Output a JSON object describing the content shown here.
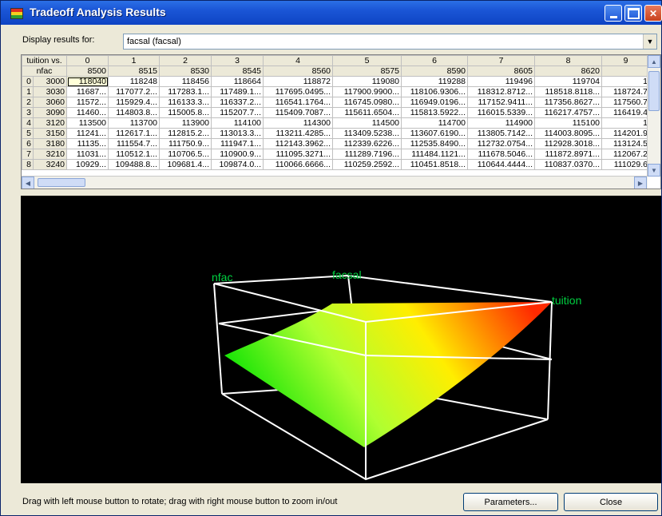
{
  "window": {
    "title": "Tradeoff Analysis Results"
  },
  "display": {
    "label": "Display results for:",
    "selected": "facsal (facsal)"
  },
  "grid": {
    "corner_top": "tuition vs.",
    "corner_bottom": "nfac",
    "col_indices": [
      "0",
      "1",
      "2",
      "3",
      "4",
      "5",
      "6",
      "7",
      "8",
      "9"
    ],
    "col_values": [
      "8500",
      "8515",
      "8530",
      "8545",
      "8560",
      "8575",
      "8590",
      "8605",
      "8620",
      ""
    ],
    "rows": [
      {
        "idx": "0",
        "val": "3000",
        "cells": [
          "118040",
          "118248",
          "118456",
          "118664",
          "118872",
          "119080",
          "119288",
          "119496",
          "119704",
          "1"
        ]
      },
      {
        "idx": "1",
        "val": "3030",
        "cells": [
          "11687...",
          "117077.2...",
          "117283.1...",
          "117489.1...",
          "117695.0495...",
          "117900.9900...",
          "118106.9306...",
          "118312.8712...",
          "118518.8118...",
          "118724.7"
        ]
      },
      {
        "idx": "2",
        "val": "3060",
        "cells": [
          "11572...",
          "115929.4...",
          "116133.3...",
          "116337.2...",
          "116541.1764...",
          "116745.0980...",
          "116949.0196...",
          "117152.9411...",
          "117356.8627...",
          "117560.7"
        ]
      },
      {
        "idx": "3",
        "val": "3090",
        "cells": [
          "11460...",
          "114803.8...",
          "115005.8...",
          "115207.7...",
          "115409.7087...",
          "115611.6504...",
          "115813.5922...",
          "116015.5339...",
          "116217.4757...",
          "116419.4"
        ]
      },
      {
        "idx": "4",
        "val": "3120",
        "cells": [
          "113500",
          "113700",
          "113900",
          "114100",
          "114300",
          "114500",
          "114700",
          "114900",
          "115100",
          "1"
        ]
      },
      {
        "idx": "5",
        "val": "3150",
        "cells": [
          "11241...",
          "112617.1...",
          "112815.2...",
          "113013.3...",
          "113211.4285...",
          "113409.5238...",
          "113607.6190...",
          "113805.7142...",
          "114003.8095...",
          "114201.9"
        ]
      },
      {
        "idx": "6",
        "val": "3180",
        "cells": [
          "11135...",
          "111554.7...",
          "111750.9...",
          "111947.1...",
          "112143.3962...",
          "112339.6226...",
          "112535.8490...",
          "112732.0754...",
          "112928.3018...",
          "113124.5"
        ]
      },
      {
        "idx": "7",
        "val": "3210",
        "cells": [
          "11031...",
          "110512.1...",
          "110706.5...",
          "110900.9...",
          "111095.3271...",
          "111289.7196...",
          "111484.1121...",
          "111678.5046...",
          "111872.8971...",
          "112067.2"
        ]
      },
      {
        "idx": "8",
        "val": "3240",
        "cells": [
          "10929...",
          "109488.8...",
          "109681.4...",
          "109874.0...",
          "110066.6666...",
          "110259.2592...",
          "110451.8518...",
          "110644.4444...",
          "110837.0370...",
          "111029.6"
        ]
      }
    ]
  },
  "plot": {
    "axis_labels": {
      "nfac": "nfac",
      "facsal": "facsal",
      "tuition": "tuition"
    },
    "label_color": "#00d040",
    "surface_colors": [
      "#00e000",
      "#b0ff30",
      "#ffee00",
      "#ff2a00"
    ]
  },
  "footer": {
    "status": "Drag with left mouse button to rotate; drag with right mouse button to zoom in/out",
    "parameters_button": "Parameters...",
    "close_button": "Close"
  }
}
